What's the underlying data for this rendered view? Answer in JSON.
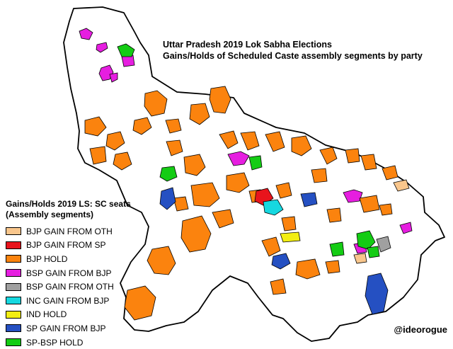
{
  "title_lines": [
    "Uttar Pradesh 2019 Lok Sabha Elections",
    "Gains/Holds of Scheduled Caste assembly segments by party"
  ],
  "legend": {
    "heading_lines": [
      "Gains/Holds 2019 LS: SC seats",
      "(Assembly segments)"
    ],
    "items": [
      {
        "label": "BJP GAIN FROM OTH",
        "color": "#f9c68c"
      },
      {
        "label": "BJP GAIN FROM SP",
        "color": "#e8141c"
      },
      {
        "label": "BJP HOLD",
        "color": "#fb830e"
      },
      {
        "label": "BSP GAIN FROM BJP",
        "color": "#e61ee0"
      },
      {
        "label": "BSP GAIN FROM OTH",
        "color": "#a0a0a0"
      },
      {
        "label": "INC GAIN FROM BJP",
        "color": "#16d8e0"
      },
      {
        "label": "IND HOLD",
        "color": "#f2ee12"
      },
      {
        "label": "SP GAIN FROM BJP",
        "color": "#2550c2"
      },
      {
        "label": "SP-BSP HOLD",
        "color": "#14cc14"
      }
    ]
  },
  "credit": "@ideorogue",
  "colors": {
    "state_fill": "#ffffff",
    "border": "#000000"
  }
}
